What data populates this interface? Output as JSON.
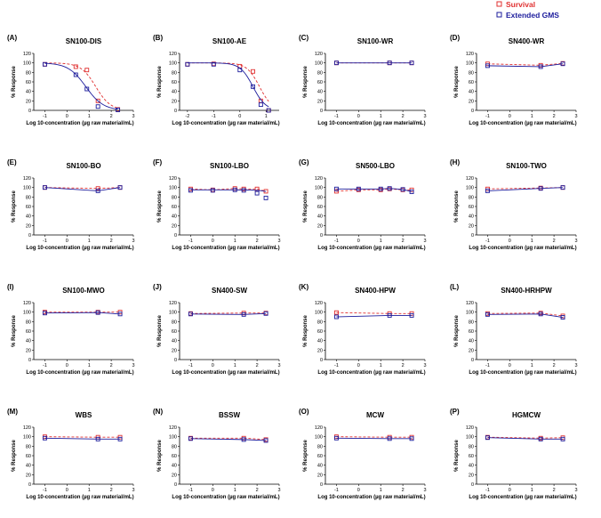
{
  "legend": {
    "entries": [
      {
        "label": "Survival",
        "color": "#e03030",
        "style": "dashed"
      },
      {
        "label": "Extended GMS",
        "color": "#1c1c9c",
        "style": "solid"
      }
    ]
  },
  "chart_data": [
    {
      "label": "(A)",
      "title": "SN100-DIS",
      "xlabel": "Log 10-concentration (µg raw material/mL)",
      "ylabel": "% Response",
      "xlim": [
        -1.5,
        3
      ],
      "xticks": [
        -1,
        0,
        1,
        2,
        3
      ],
      "ylim": [
        0,
        120
      ],
      "yticks": [
        0,
        20,
        40,
        60,
        80,
        100,
        120
      ],
      "series": [
        {
          "name": "Survival",
          "x": [
            -1,
            0.4,
            0.9,
            1.4,
            2.3
          ],
          "y": [
            97,
            92,
            85,
            20,
            2
          ],
          "curve": {
            "type": "sigmoid",
            "top": 100,
            "bottom": 0,
            "logEC50": 1.3,
            "hill": 1.3
          }
        },
        {
          "name": "Extended GMS",
          "x": [
            -1,
            0.4,
            0.9,
            1.4,
            2.3
          ],
          "y": [
            97,
            75,
            45,
            8,
            1
          ],
          "curve": {
            "type": "sigmoid",
            "top": 100,
            "bottom": 0,
            "logEC50": 0.85,
            "hill": 1.1
          }
        }
      ]
    },
    {
      "label": "(B)",
      "title": "SN100-AE",
      "xlabel": "Log 10-concentration (µg raw material/mL)",
      "ylabel": "% Response",
      "xlim": [
        -2.3,
        1.5
      ],
      "xticks": [
        -2,
        -1,
        0,
        1
      ],
      "ylim": [
        0,
        120
      ],
      "yticks": [
        0,
        20,
        40,
        60,
        80,
        100,
        120
      ],
      "series": [
        {
          "name": "Survival",
          "x": [
            -2,
            -1,
            0,
            0.5,
            0.8,
            1.1
          ],
          "y": [
            97,
            98,
            93,
            82,
            20,
            0
          ],
          "curve": {
            "type": "sigmoid",
            "top": 100,
            "bottom": 0,
            "logEC50": 0.75,
            "hill": 1.8
          }
        },
        {
          "name": "Extended GMS",
          "x": [
            -2,
            -1,
            0,
            0.5,
            0.8,
            1.1
          ],
          "y": [
            97,
            97,
            85,
            50,
            12,
            0
          ],
          "curve": {
            "type": "sigmoid",
            "top": 100,
            "bottom": 0,
            "logEC50": 0.5,
            "hill": 1.8
          }
        }
      ]
    },
    {
      "label": "(C)",
      "title": "SN100-WR",
      "xlabel": "Log 10-concentration (µg raw material/mL)",
      "ylabel": "% Response",
      "xlim": [
        -1.5,
        3
      ],
      "xticks": [
        -1,
        0,
        1,
        2,
        3
      ],
      "ylim": [
        0,
        120
      ],
      "yticks": [
        0,
        20,
        40,
        60,
        80,
        100,
        120
      ],
      "series": [
        {
          "name": "Survival",
          "x": [
            -1,
            1.4,
            2.4
          ],
          "y": [
            100,
            100,
            100
          ],
          "curve": {
            "type": "linear"
          }
        },
        {
          "name": "Extended GMS",
          "x": [
            -1,
            1.4,
            2.4
          ],
          "y": [
            100,
            100,
            100
          ],
          "curve": {
            "type": "linear"
          }
        }
      ]
    },
    {
      "label": "(D)",
      "title": "SN400-WR",
      "xlabel": "Log 10-concentration (µg raw material/mL)",
      "ylabel": "% Response",
      "xlim": [
        -1.5,
        3
      ],
      "xticks": [
        -1,
        0,
        1,
        2,
        3
      ],
      "ylim": [
        0,
        120
      ],
      "yticks": [
        0,
        20,
        40,
        60,
        80,
        100,
        120
      ],
      "series": [
        {
          "name": "Survival",
          "x": [
            -1,
            1.4,
            2.4
          ],
          "y": [
            98,
            95,
            99
          ],
          "curve": {
            "type": "linear"
          }
        },
        {
          "name": "Extended GMS",
          "x": [
            -1,
            1.4,
            2.4
          ],
          "y": [
            94,
            92,
            98
          ],
          "curve": {
            "type": "linear"
          }
        }
      ]
    },
    {
      "label": "(E)",
      "title": "SN100-BO",
      "xlabel": "Log 10-concentration (µg raw material/mL)",
      "ylabel": "% Response",
      "xlim": [
        -1.5,
        3
      ],
      "xticks": [
        -1,
        0,
        1,
        2,
        3
      ],
      "ylim": [
        0,
        120
      ],
      "yticks": [
        0,
        20,
        40,
        60,
        80,
        100,
        120
      ],
      "series": [
        {
          "name": "Survival",
          "x": [
            -1,
            1.4,
            2.4
          ],
          "y": [
            100,
            98,
            100
          ],
          "curve": {
            "type": "linear"
          }
        },
        {
          "name": "Extended GMS",
          "x": [
            -1,
            1.4,
            2.4
          ],
          "y": [
            100,
            93,
            100
          ],
          "curve": {
            "type": "linear"
          }
        }
      ]
    },
    {
      "label": "(F)",
      "title": "SN100-LBO",
      "xlabel": "Log 10-concentration (µg raw material/mL)",
      "ylabel": "% Response",
      "xlim": [
        -1.5,
        3
      ],
      "xticks": [
        -1,
        0,
        1,
        2,
        3
      ],
      "ylim": [
        0,
        120
      ],
      "yticks": [
        0,
        20,
        40,
        60,
        80,
        100,
        120
      ],
      "series": [
        {
          "name": "Survival",
          "x": [
            -1,
            0,
            1,
            1.4,
            2,
            2.4
          ],
          "y": [
            97,
            95,
            98,
            97,
            97,
            92
          ],
          "curve": {
            "type": "linear"
          }
        },
        {
          "name": "Extended GMS",
          "x": [
            -1,
            0,
            1,
            1.4,
            2,
            2.4
          ],
          "y": [
            94,
            94,
            95,
            94,
            88,
            78
          ],
          "curve": {
            "type": "sigmoid",
            "top": 95,
            "bottom": 0,
            "logEC50": 3.5,
            "hill": 1.3
          }
        }
      ]
    },
    {
      "label": "(G)",
      "title": "SN500-LBO",
      "xlabel": "Log 10-concentration (µg raw material/mL)",
      "ylabel": "% Response",
      "xlim": [
        -1.5,
        3
      ],
      "xticks": [
        -1,
        0,
        1,
        2,
        3
      ],
      "ylim": [
        0,
        120
      ],
      "yticks": [
        0,
        20,
        40,
        60,
        80,
        100,
        120
      ],
      "series": [
        {
          "name": "Survival",
          "x": [
            -1,
            0,
            1,
            1.4,
            2,
            2.4
          ],
          "y": [
            92,
            95,
            95,
            97,
            95,
            95
          ],
          "curve": {
            "type": "linear"
          }
        },
        {
          "name": "Extended GMS",
          "x": [
            -1,
            0,
            1,
            1.4,
            2,
            2.4
          ],
          "y": [
            97,
            97,
            97,
            98,
            96,
            91
          ],
          "curve": {
            "type": "linear"
          }
        }
      ]
    },
    {
      "label": "(H)",
      "title": "SN100-TWO",
      "xlabel": "Log 10-concentration (µg raw material/mL)",
      "ylabel": "% Response",
      "xlim": [
        -1.5,
        3
      ],
      "xticks": [
        -1,
        0,
        1,
        2,
        3
      ],
      "ylim": [
        0,
        120
      ],
      "yticks": [
        0,
        20,
        40,
        60,
        80,
        100,
        120
      ],
      "series": [
        {
          "name": "Survival",
          "x": [
            -1,
            1.4,
            2.4
          ],
          "y": [
            97,
            99,
            100
          ],
          "curve": {
            "type": "linear"
          }
        },
        {
          "name": "Extended GMS",
          "x": [
            -1,
            1.4,
            2.4
          ],
          "y": [
            93,
            98,
            100
          ],
          "curve": {
            "type": "linear"
          }
        }
      ]
    },
    {
      "label": "(I)",
      "title": "SN100-MWO",
      "xlabel": "Log 10-concentration (µg raw material/mL)",
      "ylabel": "% Response",
      "xlim": [
        -1.5,
        3
      ],
      "xticks": [
        -1,
        0,
        1,
        2,
        3
      ],
      "ylim": [
        0,
        120
      ],
      "yticks": [
        0,
        20,
        40,
        60,
        80,
        100,
        120
      ],
      "series": [
        {
          "name": "Survival",
          "x": [
            -1,
            1.4,
            2.4
          ],
          "y": [
            100,
            100,
            100
          ],
          "curve": {
            "type": "linear"
          }
        },
        {
          "name": "Extended GMS",
          "x": [
            -1,
            1.4,
            2.4
          ],
          "y": [
            98,
            99,
            96
          ],
          "curve": {
            "type": "linear"
          }
        }
      ]
    },
    {
      "label": "(J)",
      "title": "SN400-SW",
      "xlabel": "Log 10-concentration (µg raw material/mL)",
      "ylabel": "% Response",
      "xlim": [
        -1.5,
        3
      ],
      "xticks": [
        -1,
        0,
        1,
        2,
        3
      ],
      "ylim": [
        0,
        120
      ],
      "yticks": [
        0,
        20,
        40,
        60,
        80,
        100,
        120
      ],
      "series": [
        {
          "name": "Survival",
          "x": [
            -1,
            1.4,
            2.4
          ],
          "y": [
            97,
            98,
            98
          ],
          "curve": {
            "type": "linear"
          }
        },
        {
          "name": "Extended GMS",
          "x": [
            -1,
            1.4,
            2.4
          ],
          "y": [
            96,
            95,
            97
          ],
          "curve": {
            "type": "linear"
          }
        }
      ]
    },
    {
      "label": "(K)",
      "title": "SN400-HPW",
      "xlabel": "Log 10-concentration (µg raw material/mL)",
      "ylabel": "% Response",
      "xlim": [
        -1.5,
        3
      ],
      "xticks": [
        -1,
        0,
        1,
        2,
        3
      ],
      "ylim": [
        0,
        120
      ],
      "yticks": [
        0,
        20,
        40,
        60,
        80,
        100,
        120
      ],
      "series": [
        {
          "name": "Survival",
          "x": [
            -1,
            1.4,
            2.4
          ],
          "y": [
            99,
            97,
            97
          ],
          "curve": {
            "type": "linear"
          }
        },
        {
          "name": "Extended GMS",
          "x": [
            -1,
            1.4,
            2.4
          ],
          "y": [
            90,
            93,
            93
          ],
          "curve": {
            "type": "linear"
          }
        }
      ]
    },
    {
      "label": "(L)",
      "title": "SN400-HRHPW",
      "xlabel": "Log 10-concentration (µg raw material/mL)",
      "ylabel": "% Response",
      "xlim": [
        -1.5,
        3
      ],
      "xticks": [
        -1,
        0,
        1,
        2,
        3
      ],
      "ylim": [
        0,
        120
      ],
      "yticks": [
        0,
        20,
        40,
        60,
        80,
        100,
        120
      ],
      "series": [
        {
          "name": "Survival",
          "x": [
            -1,
            1.4,
            2.4
          ],
          "y": [
            97,
            98,
            92
          ],
          "curve": {
            "type": "linear"
          }
        },
        {
          "name": "Extended GMS",
          "x": [
            -1,
            1.4,
            2.4
          ],
          "y": [
            95,
            96,
            89
          ],
          "curve": {
            "type": "linear"
          }
        }
      ]
    },
    {
      "label": "(M)",
      "title": "WBS",
      "xlabel": "Log 10-concentration (µg raw material/mL)",
      "ylabel": "% Response",
      "xlim": [
        -1.5,
        3
      ],
      "xticks": [
        -1,
        0,
        1,
        2,
        3
      ],
      "ylim": [
        0,
        120
      ],
      "yticks": [
        0,
        20,
        40,
        60,
        80,
        100,
        120
      ],
      "series": [
        {
          "name": "Survival",
          "x": [
            -1,
            1.4,
            2.4
          ],
          "y": [
            100,
            99,
            99
          ],
          "curve": {
            "type": "linear"
          }
        },
        {
          "name": "Extended GMS",
          "x": [
            -1,
            1.4,
            2.4
          ],
          "y": [
            97,
            95,
            95
          ],
          "curve": {
            "type": "linear"
          }
        }
      ]
    },
    {
      "label": "(N)",
      "title": "BSSW",
      "xlabel": "Log 10-concentration (µg raw material/mL)",
      "ylabel": "% Response",
      "xlim": [
        -1.5,
        3
      ],
      "xticks": [
        -1,
        0,
        1,
        2,
        3
      ],
      "ylim": [
        0,
        120
      ],
      "yticks": [
        0,
        20,
        40,
        60,
        80,
        100,
        120
      ],
      "series": [
        {
          "name": "Survival",
          "x": [
            -1,
            1.4,
            2.4
          ],
          "y": [
            97,
            97,
            94
          ],
          "curve": {
            "type": "linear"
          }
        },
        {
          "name": "Extended GMS",
          "x": [
            -1,
            1.4,
            2.4
          ],
          "y": [
            96,
            94,
            92
          ],
          "curve": {
            "type": "linear"
          }
        }
      ]
    },
    {
      "label": "(O)",
      "title": "MCW",
      "xlabel": "Log 10-concentration (µg raw material/mL)",
      "ylabel": "% Response",
      "xlim": [
        -1.5,
        3
      ],
      "xticks": [
        -1,
        0,
        1,
        2,
        3
      ],
      "ylim": [
        0,
        120
      ],
      "yticks": [
        0,
        20,
        40,
        60,
        80,
        100,
        120
      ],
      "series": [
        {
          "name": "Survival",
          "x": [
            -1,
            1.4,
            2.4
          ],
          "y": [
            100,
            99,
            99
          ],
          "curve": {
            "type": "linear"
          }
        },
        {
          "name": "Extended GMS",
          "x": [
            -1,
            1.4,
            2.4
          ],
          "y": [
            97,
            96,
            96
          ],
          "curve": {
            "type": "linear"
          }
        }
      ]
    },
    {
      "label": "(P)",
      "title": "HGMCW",
      "xlabel": "Log 10-concentration (µg raw material/mL)",
      "ylabel": "% Response",
      "xlim": [
        -1.5,
        3
      ],
      "xticks": [
        -1,
        0,
        1,
        2,
        3
      ],
      "ylim": [
        0,
        120
      ],
      "yticks": [
        0,
        20,
        40,
        60,
        80,
        100,
        120
      ],
      "series": [
        {
          "name": "Survival",
          "x": [
            -1,
            1.4,
            2.4
          ],
          "y": [
            99,
            97,
            98
          ],
          "curve": {
            "type": "linear"
          }
        },
        {
          "name": "Extended GMS",
          "x": [
            -1,
            1.4,
            2.4
          ],
          "y": [
            98,
            95,
            95
          ],
          "curve": {
            "type": "linear"
          }
        }
      ]
    }
  ]
}
